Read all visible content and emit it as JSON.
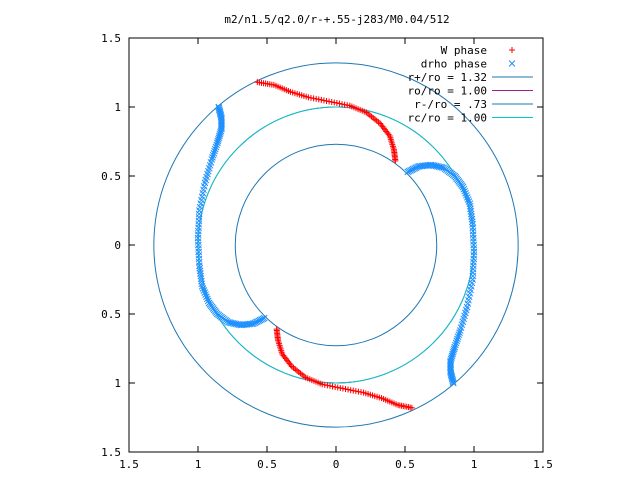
{
  "chart_data": {
    "type": "scatter",
    "title": "m2/n1.5/q2.0/r-+.55-j283/M0.04/512",
    "xlabel": "",
    "ylabel": "",
    "xlim": [
      -1.5,
      1.5
    ],
    "ylim": [
      -1.5,
      1.5
    ],
    "x_tick_values": [
      -1.5,
      -1,
      -0.5,
      0,
      0.5,
      1,
      1.5
    ],
    "y_tick_values": [
      -1.5,
      -1,
      -0.5,
      0,
      0.5,
      1,
      1.5
    ],
    "x_tick_labels": [
      "1.5",
      "1",
      "0.5",
      "0",
      "0.5",
      "1",
      "1.5"
    ],
    "y_tick_labels": [
      "1.5",
      "1",
      "0.5",
      "0",
      "0.5",
      "1",
      "1.5"
    ],
    "grid": false,
    "legend_position": "top-right",
    "series": [
      {
        "name": "W phase",
        "kind": "points",
        "marker": "plus",
        "color": "#ff0000",
        "arcs": [
          [
            [
              -0.57,
              1.18
            ],
            [
              -0.45,
              1.16
            ],
            [
              -0.33,
              1.11
            ],
            [
              -0.2,
              1.07
            ],
            [
              -0.05,
              1.04
            ],
            [
              0.1,
              1.01
            ],
            [
              0.22,
              0.96
            ],
            [
              0.32,
              0.88
            ],
            [
              0.39,
              0.79
            ],
            [
              0.42,
              0.69
            ],
            [
              0.43,
              0.61
            ]
          ],
          [
            [
              -0.43,
              -0.61
            ],
            [
              -0.42,
              -0.69
            ],
            [
              -0.39,
              -0.79
            ],
            [
              -0.32,
              -0.88
            ],
            [
              -0.22,
              -0.96
            ],
            [
              -0.1,
              -1.01
            ],
            [
              0.05,
              -1.04
            ],
            [
              0.2,
              -1.07
            ],
            [
              0.33,
              -1.11
            ],
            [
              0.45,
              -1.16
            ],
            [
              0.55,
              -1.18
            ]
          ]
        ]
      },
      {
        "name": "drho phase",
        "kind": "points",
        "marker": "cross",
        "color": "#1e90ff",
        "arcs": [
          [
            [
              -0.85,
              1.0
            ],
            [
              -0.83,
              0.92
            ],
            [
              -0.83,
              0.84
            ],
            [
              -0.86,
              0.74
            ],
            [
              -0.9,
              0.62
            ],
            [
              -0.95,
              0.45
            ],
            [
              -0.99,
              0.25
            ],
            [
              -1.0,
              0.05
            ],
            [
              -0.99,
              -0.15
            ],
            [
              -0.97,
              -0.3
            ],
            [
              -0.92,
              -0.42
            ],
            [
              -0.86,
              -0.5
            ],
            [
              -0.78,
              -0.56
            ],
            [
              -0.69,
              -0.58
            ],
            [
              -0.6,
              -0.57
            ],
            [
              -0.52,
              -0.53
            ]
          ],
          [
            [
              0.52,
              0.53
            ],
            [
              0.6,
              0.57
            ],
            [
              0.69,
              0.58
            ],
            [
              0.78,
              0.56
            ],
            [
              0.86,
              0.5
            ],
            [
              0.92,
              0.42
            ],
            [
              0.97,
              0.3
            ],
            [
              0.99,
              0.15
            ],
            [
              1.0,
              -0.05
            ],
            [
              0.99,
              -0.25
            ],
            [
              0.95,
              -0.45
            ],
            [
              0.9,
              -0.62
            ],
            [
              0.86,
              -0.74
            ],
            [
              0.83,
              -0.84
            ],
            [
              0.83,
              -0.92
            ],
            [
              0.85,
              -1.0
            ]
          ]
        ]
      },
      {
        "name": "r+/ro = 1.32",
        "kind": "circle",
        "radius": 1.32,
        "color": "#1f77b4"
      },
      {
        "name": "ro/ro = 1.00",
        "kind": "circle",
        "radius": 1.0,
        "color": "#a0208c"
      },
      {
        "name": "r-/ro = .73",
        "kind": "circle",
        "radius": 0.73,
        "color": "#1f77b4"
      },
      {
        "name": "rc/ro = 1.00",
        "kind": "circle",
        "radius": 1.0,
        "color": "#00cccc"
      }
    ]
  }
}
